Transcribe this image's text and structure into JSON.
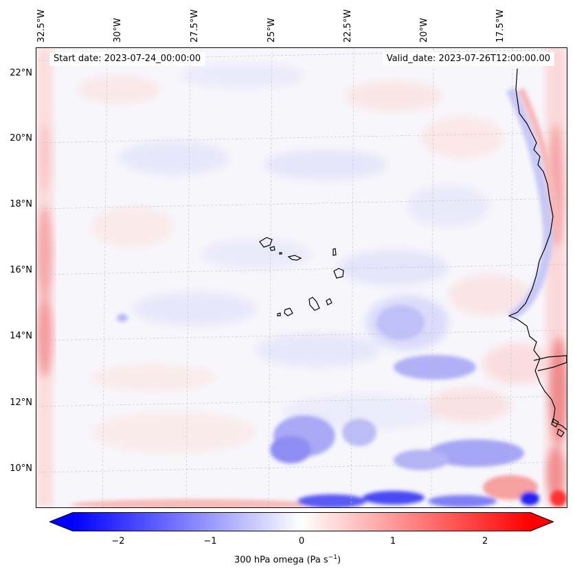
{
  "map": {
    "start_date_label": "Start date: 2023-07-24_00:00:00",
    "valid_date_label": "Valid_date: 2023-07-26T12:00:00.00",
    "longitude_labels": [
      "32.5°W",
      "30°W",
      "27.5°W",
      "25°W",
      "22.5°W",
      "20°W",
      "17.5°W"
    ],
    "latitude_labels": [
      "22°N",
      "20°N",
      "18°N",
      "16°N",
      "14°N",
      "12°N",
      "10°N"
    ],
    "gridlines": true
  },
  "colorbar": {
    "ticks": [
      "−2",
      "−1",
      "0",
      "1",
      "2"
    ],
    "range": [
      -2.5,
      2.5
    ],
    "extend": "both",
    "colormap": "bwr",
    "title_prefix": "300 hPa omega (Pa s",
    "title_exponent": "−1",
    "title_suffix": ")"
  },
  "colors": {
    "negative": "#0000ff",
    "neutral": "#ffffff",
    "positive": "#ff0000",
    "coastline": "#000000"
  }
}
